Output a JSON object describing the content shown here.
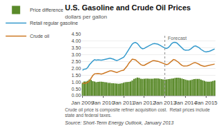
{
  "chart_data": {
    "type": "bar",
    "title": "U.S. Gasoline and Crude Oil Prices",
    "subtitle": "dollars per gallon",
    "footnote": "Crude oil price is composite refiner acquisition cost.  Retail prices include state and federal taxes.",
    "source": "Source: Short-Term Energy Outlook, January 2013",
    "annotations": [
      {
        "text": "Forecast",
        "x": "Jan 2013"
      }
    ],
    "categories": [
      "Jan 2009",
      null,
      null,
      null,
      null,
      null,
      null,
      null,
      null,
      null,
      null,
      null,
      "Jan 2010",
      null,
      null,
      null,
      null,
      null,
      null,
      null,
      null,
      null,
      null,
      null,
      "Jan 2011",
      null,
      null,
      null,
      null,
      null,
      null,
      null,
      null,
      null,
      null,
      null,
      "Jan 2012",
      null,
      null,
      null,
      null,
      null,
      null,
      null,
      null,
      null,
      null,
      null,
      "Jan 2013",
      null,
      null,
      null,
      null,
      null,
      null,
      null,
      null,
      null,
      null,
      null,
      "Jan 2014",
      null,
      null,
      null,
      null,
      null,
      null,
      null,
      null,
      null,
      null,
      null,
      "Jan 2015",
      null,
      null,
      null,
      null,
      null
    ],
    "series": [
      {
        "name": "Price difference",
        "type": "bar",
        "color": "#5a8a2a",
        "values": [
          0.94,
          1.04,
          1.04,
          1.09,
          1.18,
          1.15,
          1.06,
          1.04,
          0.98,
          1.01,
          1.02,
          1.02,
          1.01,
          0.99,
          0.97,
          0.94,
          0.93,
          0.91,
          0.91,
          0.9,
          0.88,
          0.87,
          0.88,
          0.91,
          0.95,
          0.98,
          1.0,
          1.01,
          1.04,
          1.11,
          1.23,
          1.28,
          1.33,
          1.3,
          1.24,
          1.22,
          1.24,
          1.25,
          1.25,
          1.24,
          1.24,
          1.24,
          1.26,
          1.27,
          1.26,
          1.24,
          1.21,
          1.19,
          1.18,
          1.19,
          1.21,
          1.23,
          1.25,
          1.26,
          1.3,
          1.32,
          1.31,
          1.29,
          1.25,
          1.21,
          1.17,
          1.14,
          1.13,
          1.14,
          1.18,
          1.21,
          1.23,
          1.22,
          1.22,
          1.18,
          1.13,
          1.09,
          1.04,
          1.03,
          1.03,
          1.04,
          1.08,
          1.11
        ]
      },
      {
        "name": "Retail regular gasoline",
        "type": "line",
        "color": "#3399cc",
        "values": [
          1.87,
          1.94,
          1.96,
          2.06,
          2.26,
          2.43,
          2.54,
          2.64,
          2.6,
          2.63,
          2.62,
          2.6,
          2.63,
          2.67,
          2.7,
          2.72,
          2.75,
          2.73,
          2.68,
          2.62,
          2.58,
          2.62,
          2.7,
          2.76,
          2.82,
          2.99,
          3.17,
          3.39,
          3.6,
          3.79,
          3.88,
          3.9,
          3.83,
          3.68,
          3.52,
          3.44,
          3.47,
          3.55,
          3.62,
          3.68,
          3.77,
          3.81,
          3.83,
          3.82,
          3.78,
          3.71,
          3.63,
          3.56,
          3.5,
          3.47,
          3.53,
          3.67,
          3.83,
          3.91,
          3.92,
          3.87,
          3.75,
          3.61,
          3.47,
          3.38,
          3.34,
          3.33,
          3.35,
          3.42,
          3.53,
          3.63,
          3.65,
          3.6,
          3.52,
          3.4,
          3.3,
          3.24,
          3.21,
          3.23,
          3.26,
          3.31,
          3.38,
          3.43
        ]
      },
      {
        "name": "Crude oil",
        "type": "line",
        "color": "#cc7722",
        "values": [
          0.93,
          0.9,
          0.92,
          0.97,
          1.08,
          1.28,
          1.48,
          1.6,
          1.62,
          1.62,
          1.6,
          1.58,
          1.62,
          1.68,
          1.73,
          1.78,
          1.82,
          1.82,
          1.77,
          1.72,
          1.7,
          1.75,
          1.82,
          1.85,
          1.87,
          2.01,
          2.17,
          2.38,
          2.56,
          2.68,
          2.65,
          2.62,
          2.5,
          2.38,
          2.28,
          2.22,
          2.23,
          2.3,
          2.37,
          2.44,
          2.53,
          2.57,
          2.57,
          2.55,
          2.52,
          2.47,
          2.42,
          2.37,
          2.32,
          2.28,
          2.32,
          2.44,
          2.58,
          2.65,
          2.62,
          2.55,
          2.44,
          2.32,
          2.22,
          2.17,
          2.17,
          2.19,
          2.22,
          2.28,
          2.35,
          2.42,
          2.42,
          2.38,
          2.3,
          2.22,
          2.17,
          2.15,
          2.17,
          2.2,
          2.23,
          2.27,
          2.3,
          2.32
        ]
      }
    ],
    "ylim": [
      0.0,
      4.5
    ],
    "yticks": [
      {
        "value": 0.0,
        "label": "0.00"
      },
      {
        "value": 0.5,
        "label": "0.50"
      },
      {
        "value": 1.0,
        "label": "1.00"
      },
      {
        "value": 1.5,
        "label": "1.50"
      },
      {
        "value": 2.0,
        "label": "2.00"
      },
      {
        "value": 2.5,
        "label": "2.50"
      },
      {
        "value": 3.0,
        "label": "3.00"
      },
      {
        "value": 3.5,
        "label": "3.50"
      },
      {
        "value": 4.0,
        "label": "4.00"
      },
      {
        "value": 4.5,
        "label": "4.50"
      }
    ],
    "grid": true,
    "legend": "top"
  }
}
